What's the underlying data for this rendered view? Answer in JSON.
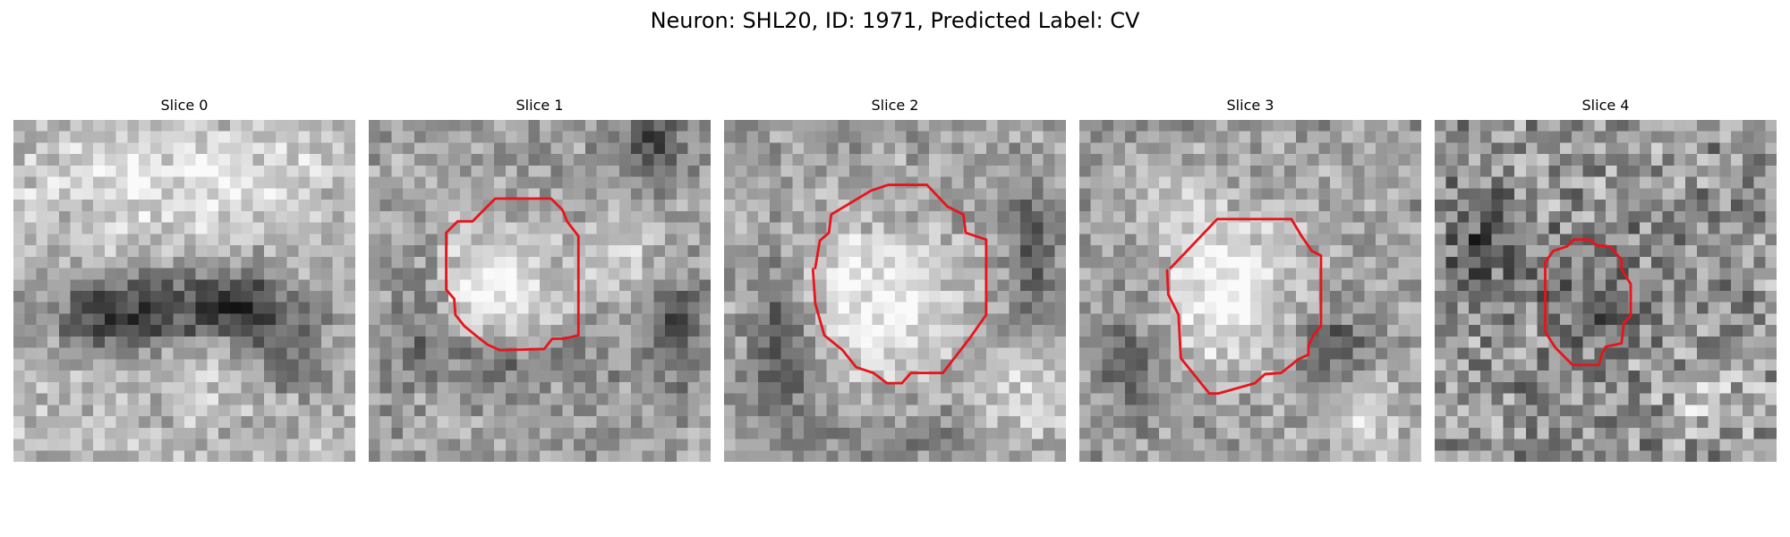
{
  "figure": {
    "title": "Neuron: SHL20, ID: 1971, Predicted Label: CV"
  },
  "colors": {
    "contour": "#e8141b",
    "background": "#ffffff",
    "text": "#000000",
    "colormap": "gray"
  },
  "slices": [
    {
      "title": "Slice 0",
      "has_contour": false,
      "grid_size": 30,
      "seed": 11,
      "description_of_pattern": "diffuse bright upper band with dark horizontal band in middle"
    },
    {
      "title": "Slice 1",
      "has_contour": true,
      "grid_size": 30,
      "seed": 23,
      "description_of_pattern": "bright round cell body in center left"
    },
    {
      "title": "Slice 2",
      "has_contour": true,
      "grid_size": 30,
      "seed": 37,
      "description_of_pattern": "large bright round cell body in center"
    },
    {
      "title": "Slice 3",
      "has_contour": true,
      "grid_size": 30,
      "seed": 49,
      "description_of_pattern": "large bright round cell body in center"
    },
    {
      "title": "Slice 4",
      "has_contour": true,
      "grid_size": 30,
      "seed": 61,
      "description_of_pattern": "noisy texture with dimmer round region in center"
    }
  ]
}
